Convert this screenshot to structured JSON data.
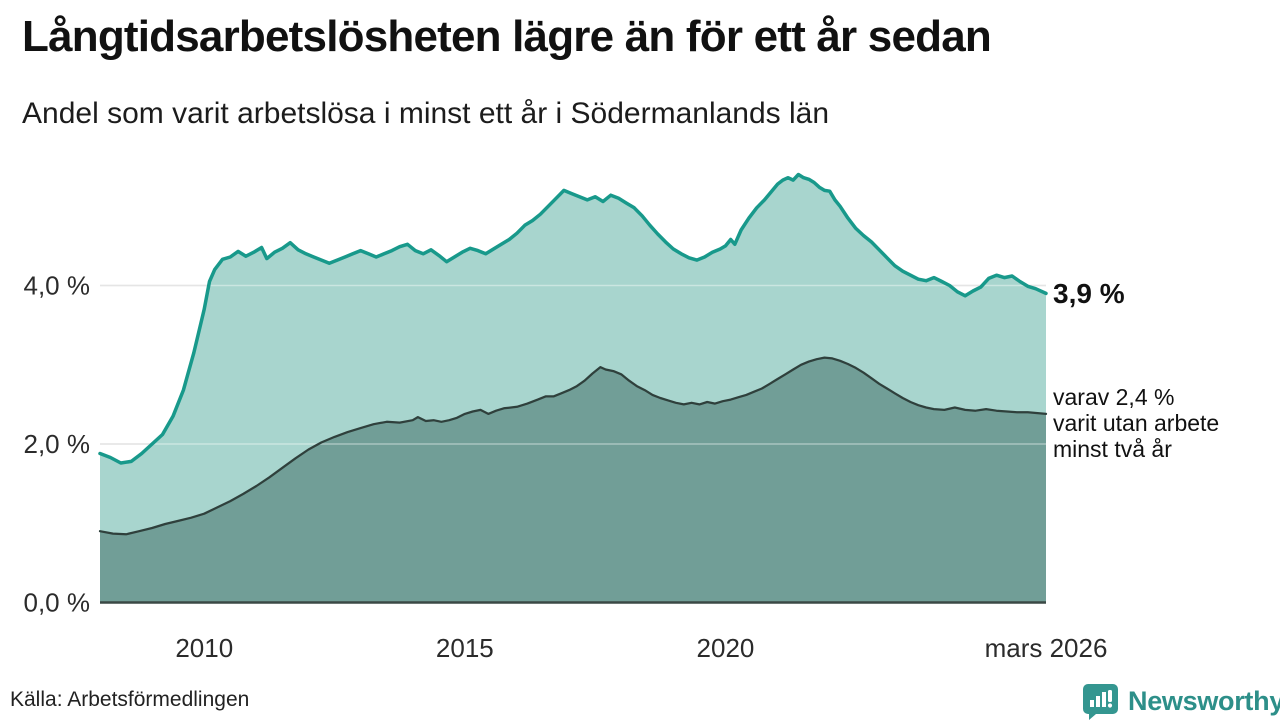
{
  "header": {
    "title": "Långtidsarbetslösheten lägre än för ett år sedan",
    "subtitle": "Andel som varit arbetslösa i minst ett år i Södermanlands län"
  },
  "chart_data": {
    "type": "area",
    "title": "Långtidsarbetslösheten lägre än för ett år sedan",
    "subtitle": "Andel som varit arbetslösa i minst ett år i Södermanlands län",
    "x_domain": [
      2008,
      2026.15
    ],
    "ylim": [
      0,
      5.8
    ],
    "grid": "horizontal",
    "y_ticks": [
      {
        "value": 0,
        "label": "0,0 %"
      },
      {
        "value": 2,
        "label": "2,0 %"
      },
      {
        "value": 4,
        "label": "4,0 %"
      }
    ],
    "x_ticks": [
      {
        "value": 2010,
        "label": "2010"
      },
      {
        "value": 2015,
        "label": "2015"
      },
      {
        "value": 2020,
        "label": "2020"
      },
      {
        "value": 2026.15,
        "label": "mars 2026"
      }
    ],
    "series": [
      {
        "name": "Andel som varit arbetslösa i minst ett år",
        "stroke": "#18998b",
        "fill": "#a8d5ce",
        "stroke_width": 3.5,
        "points": [
          [
            2008.0,
            1.88
          ],
          [
            2008.2,
            1.83
          ],
          [
            2008.4,
            1.76
          ],
          [
            2008.6,
            1.78
          ],
          [
            2008.8,
            1.88
          ],
          [
            2009.0,
            2.0
          ],
          [
            2009.2,
            2.12
          ],
          [
            2009.4,
            2.35
          ],
          [
            2009.6,
            2.68
          ],
          [
            2009.8,
            3.15
          ],
          [
            2010.0,
            3.7
          ],
          [
            2010.1,
            4.05
          ],
          [
            2010.2,
            4.2
          ],
          [
            2010.35,
            4.33
          ],
          [
            2010.5,
            4.36
          ],
          [
            2010.65,
            4.43
          ],
          [
            2010.8,
            4.37
          ],
          [
            2010.95,
            4.42
          ],
          [
            2011.1,
            4.48
          ],
          [
            2011.2,
            4.34
          ],
          [
            2011.35,
            4.42
          ],
          [
            2011.5,
            4.47
          ],
          [
            2011.65,
            4.54
          ],
          [
            2011.8,
            4.45
          ],
          [
            2011.95,
            4.4
          ],
          [
            2012.1,
            4.36
          ],
          [
            2012.25,
            4.32
          ],
          [
            2012.4,
            4.28
          ],
          [
            2012.55,
            4.32
          ],
          [
            2012.7,
            4.36
          ],
          [
            2012.85,
            4.4
          ],
          [
            2013.0,
            4.44
          ],
          [
            2013.15,
            4.4
          ],
          [
            2013.3,
            4.36
          ],
          [
            2013.45,
            4.4
          ],
          [
            2013.6,
            4.44
          ],
          [
            2013.75,
            4.49
          ],
          [
            2013.9,
            4.52
          ],
          [
            2014.05,
            4.44
          ],
          [
            2014.2,
            4.4
          ],
          [
            2014.35,
            4.45
          ],
          [
            2014.5,
            4.38
          ],
          [
            2014.65,
            4.3
          ],
          [
            2014.8,
            4.36
          ],
          [
            2014.95,
            4.42
          ],
          [
            2015.1,
            4.47
          ],
          [
            2015.25,
            4.44
          ],
          [
            2015.4,
            4.4
          ],
          [
            2015.55,
            4.46
          ],
          [
            2015.7,
            4.52
          ],
          [
            2015.85,
            4.58
          ],
          [
            2016.0,
            4.66
          ],
          [
            2016.15,
            4.76
          ],
          [
            2016.3,
            4.82
          ],
          [
            2016.45,
            4.9
          ],
          [
            2016.6,
            5.0
          ],
          [
            2016.75,
            5.1
          ],
          [
            2016.9,
            5.2
          ],
          [
            2017.05,
            5.16
          ],
          [
            2017.2,
            5.12
          ],
          [
            2017.35,
            5.08
          ],
          [
            2017.5,
            5.12
          ],
          [
            2017.65,
            5.06
          ],
          [
            2017.8,
            5.14
          ],
          [
            2017.95,
            5.1
          ],
          [
            2018.1,
            5.04
          ],
          [
            2018.25,
            4.98
          ],
          [
            2018.4,
            4.88
          ],
          [
            2018.55,
            4.76
          ],
          [
            2018.7,
            4.65
          ],
          [
            2018.85,
            4.55
          ],
          [
            2019.0,
            4.46
          ],
          [
            2019.15,
            4.4
          ],
          [
            2019.3,
            4.35
          ],
          [
            2019.45,
            4.32
          ],
          [
            2019.6,
            4.36
          ],
          [
            2019.75,
            4.42
          ],
          [
            2019.9,
            4.46
          ],
          [
            2020.0,
            4.5
          ],
          [
            2020.1,
            4.58
          ],
          [
            2020.18,
            4.52
          ],
          [
            2020.3,
            4.7
          ],
          [
            2020.45,
            4.85
          ],
          [
            2020.6,
            4.98
          ],
          [
            2020.75,
            5.08
          ],
          [
            2020.9,
            5.2
          ],
          [
            2021.0,
            5.28
          ],
          [
            2021.1,
            5.33
          ],
          [
            2021.2,
            5.36
          ],
          [
            2021.3,
            5.33
          ],
          [
            2021.4,
            5.4
          ],
          [
            2021.5,
            5.36
          ],
          [
            2021.6,
            5.34
          ],
          [
            2021.7,
            5.3
          ],
          [
            2021.8,
            5.24
          ],
          [
            2021.9,
            5.2
          ],
          [
            2022.0,
            5.19
          ],
          [
            2022.1,
            5.08
          ],
          [
            2022.2,
            5.0
          ],
          [
            2022.35,
            4.85
          ],
          [
            2022.5,
            4.72
          ],
          [
            2022.65,
            4.63
          ],
          [
            2022.8,
            4.55
          ],
          [
            2022.95,
            4.45
          ],
          [
            2023.1,
            4.35
          ],
          [
            2023.25,
            4.25
          ],
          [
            2023.4,
            4.18
          ],
          [
            2023.55,
            4.13
          ],
          [
            2023.7,
            4.08
          ],
          [
            2023.85,
            4.06
          ],
          [
            2024.0,
            4.1
          ],
          [
            2024.15,
            4.05
          ],
          [
            2024.3,
            4.0
          ],
          [
            2024.45,
            3.92
          ],
          [
            2024.6,
            3.87
          ],
          [
            2024.75,
            3.93
          ],
          [
            2024.9,
            3.98
          ],
          [
            2025.05,
            4.09
          ],
          [
            2025.2,
            4.13
          ],
          [
            2025.35,
            4.1
          ],
          [
            2025.5,
            4.12
          ],
          [
            2025.65,
            4.05
          ],
          [
            2025.8,
            3.99
          ],
          [
            2025.95,
            3.96
          ],
          [
            2026.15,
            3.9
          ]
        ]
      },
      {
        "name": "varav varit utan arbete minst två år",
        "stroke": "#2f403c",
        "fill": "#719e97",
        "stroke_width": 2.25,
        "points": [
          [
            2008.0,
            0.9
          ],
          [
            2008.25,
            0.87
          ],
          [
            2008.5,
            0.86
          ],
          [
            2008.75,
            0.9
          ],
          [
            2009.0,
            0.94
          ],
          [
            2009.25,
            0.99
          ],
          [
            2009.5,
            1.03
          ],
          [
            2009.75,
            1.07
          ],
          [
            2010.0,
            1.12
          ],
          [
            2010.25,
            1.2
          ],
          [
            2010.5,
            1.28
          ],
          [
            2010.75,
            1.37
          ],
          [
            2011.0,
            1.47
          ],
          [
            2011.25,
            1.58
          ],
          [
            2011.5,
            1.7
          ],
          [
            2011.75,
            1.82
          ],
          [
            2012.0,
            1.93
          ],
          [
            2012.25,
            2.02
          ],
          [
            2012.5,
            2.09
          ],
          [
            2012.75,
            2.15
          ],
          [
            2013.0,
            2.2
          ],
          [
            2013.25,
            2.25
          ],
          [
            2013.5,
            2.28
          ],
          [
            2013.75,
            2.27
          ],
          [
            2014.0,
            2.3
          ],
          [
            2014.1,
            2.34
          ],
          [
            2014.25,
            2.29
          ],
          [
            2014.4,
            2.3
          ],
          [
            2014.55,
            2.28
          ],
          [
            2014.7,
            2.3
          ],
          [
            2014.85,
            2.33
          ],
          [
            2015.0,
            2.38
          ],
          [
            2015.15,
            2.41
          ],
          [
            2015.3,
            2.43
          ],
          [
            2015.45,
            2.38
          ],
          [
            2015.6,
            2.42
          ],
          [
            2015.75,
            2.45
          ],
          [
            2016.0,
            2.47
          ],
          [
            2016.2,
            2.51
          ],
          [
            2016.4,
            2.56
          ],
          [
            2016.55,
            2.6
          ],
          [
            2016.7,
            2.6
          ],
          [
            2016.85,
            2.64
          ],
          [
            2017.0,
            2.68
          ],
          [
            2017.15,
            2.73
          ],
          [
            2017.3,
            2.8
          ],
          [
            2017.45,
            2.89
          ],
          [
            2017.6,
            2.97
          ],
          [
            2017.7,
            2.94
          ],
          [
            2017.85,
            2.92
          ],
          [
            2018.0,
            2.88
          ],
          [
            2018.15,
            2.8
          ],
          [
            2018.3,
            2.73
          ],
          [
            2018.45,
            2.68
          ],
          [
            2018.6,
            2.62
          ],
          [
            2018.75,
            2.58
          ],
          [
            2018.9,
            2.55
          ],
          [
            2019.05,
            2.52
          ],
          [
            2019.2,
            2.5
          ],
          [
            2019.35,
            2.52
          ],
          [
            2019.5,
            2.5
          ],
          [
            2019.65,
            2.53
          ],
          [
            2019.8,
            2.51
          ],
          [
            2019.95,
            2.54
          ],
          [
            2020.1,
            2.56
          ],
          [
            2020.25,
            2.59
          ],
          [
            2020.4,
            2.62
          ],
          [
            2020.55,
            2.66
          ],
          [
            2020.7,
            2.7
          ],
          [
            2020.85,
            2.76
          ],
          [
            2021.0,
            2.82
          ],
          [
            2021.15,
            2.88
          ],
          [
            2021.3,
            2.94
          ],
          [
            2021.45,
            3.0
          ],
          [
            2021.6,
            3.04
          ],
          [
            2021.75,
            3.07
          ],
          [
            2021.9,
            3.09
          ],
          [
            2022.05,
            3.08
          ],
          [
            2022.2,
            3.05
          ],
          [
            2022.35,
            3.01
          ],
          [
            2022.5,
            2.96
          ],
          [
            2022.65,
            2.9
          ],
          [
            2022.8,
            2.83
          ],
          [
            2022.95,
            2.76
          ],
          [
            2023.1,
            2.7
          ],
          [
            2023.25,
            2.64
          ],
          [
            2023.4,
            2.58
          ],
          [
            2023.55,
            2.53
          ],
          [
            2023.7,
            2.49
          ],
          [
            2023.85,
            2.46
          ],
          [
            2024.0,
            2.44
          ],
          [
            2024.2,
            2.43
          ],
          [
            2024.4,
            2.46
          ],
          [
            2024.6,
            2.43
          ],
          [
            2024.8,
            2.42
          ],
          [
            2025.0,
            2.44
          ],
          [
            2025.2,
            2.42
          ],
          [
            2025.4,
            2.41
          ],
          [
            2025.6,
            2.4
          ],
          [
            2025.8,
            2.4
          ],
          [
            2026.15,
            2.38
          ]
        ]
      }
    ],
    "end_labels": {
      "total": "3,9 %",
      "two_years_lines": [
        "varav 2,4 %",
        "varit utan arbete",
        "minst två år"
      ]
    }
  },
  "footer": {
    "source": "Källa: Arbetsförmedlingen",
    "brand": "Newsworthy"
  },
  "colors": {
    "accent_teal": "#18998b",
    "light_fill": "#a8d5ce",
    "dark_fill": "#719e97",
    "dark_stroke": "#2f403c",
    "gridline": "#d4d4d4",
    "baseline": "#3a4845",
    "brand_teal": "#2d8f89"
  }
}
